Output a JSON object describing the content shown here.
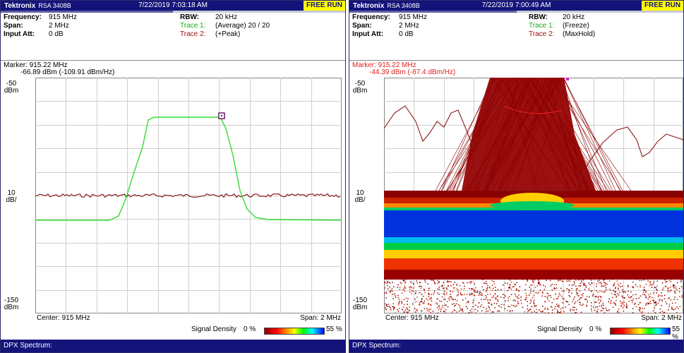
{
  "panels": [
    {
      "brand": "Tektronix",
      "model": "RSA 3408B",
      "timestamp": "7/22/2019 7:03:18 AM",
      "run_mode": "FREE RUN",
      "frequency_label": "Frequency:",
      "frequency_value": "915 MHz",
      "span_label": "Span:",
      "span_value": "2 MHz",
      "input_att_label": "Input Att:",
      "input_att_value": "0 dB",
      "rbw_label": "RBW:",
      "rbw_value": "20 kHz",
      "trace1_label": "Trace 1:",
      "trace1_value": "(Average)   20 / 20",
      "trace2_label": "Trace 2:",
      "trace2_value": "(+Peak)",
      "marker_line1": "Marker: 915.22 MHz",
      "marker_line2": "-66.89 dBm (-109.91 dBm/Hz)",
      "top_scale_value": "-50",
      "top_scale_unit": "dBm",
      "mid_scale_value": "10",
      "mid_scale_unit": "dB/",
      "bottom_scale_value": "-150",
      "bottom_scale_unit": "dBm",
      "center_text": "Center: 915 MHz",
      "span_text": "Span: 2 MHz",
      "density_label": "Signal Density",
      "density_min": "0 %",
      "density_max": "55 %",
      "footer": "DPX Spectrum:"
    },
    {
      "brand": "Tektronix",
      "model": "RSA 3408B",
      "timestamp": "7/22/2019 7:00:49 AM",
      "run_mode": "FREE RUN",
      "frequency_label": "Frequency:",
      "frequency_value": "915 MHz",
      "span_label": "Span:",
      "span_value": "2 MHz",
      "input_att_label": "Input Att:",
      "input_att_value": "0 dB",
      "rbw_label": "RBW:",
      "rbw_value": "20 kHz",
      "trace1_label": "Trace 1:",
      "trace1_value": "(Freeze)",
      "trace2_label": "Trace 2:",
      "trace2_value": "(MaxHold)",
      "marker_line1": "Marker: 915.22 MHz",
      "marker_line2": "-44.39 dBm (-87.4 dBm/Hz)",
      "top_scale_value": "-50",
      "top_scale_unit": "dBm",
      "mid_scale_value": "10",
      "mid_scale_unit": "dB/",
      "bottom_scale_value": "-150",
      "bottom_scale_unit": "dBm",
      "center_text": "Center: 915 MHz",
      "span_text": "Span: 2 MHz",
      "density_label": "Signal Density",
      "density_min": "0 %",
      "density_max": "55 %",
      "footer": "DPX Spectrum:"
    }
  ],
  "colors": {
    "title_bar": "#13137a",
    "run_badge": "#ffff00",
    "trace_green": "#33dd33",
    "trace_maroon": "#8b1a1a",
    "marker_red": "#e02020",
    "grid": "#c8c8c8"
  },
  "icons": {
    "marker": "marker-square-icon"
  }
}
